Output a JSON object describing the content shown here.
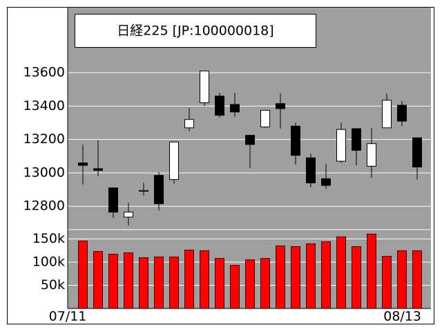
{
  "chart_data": [
    {
      "type": "candlestick",
      "title": "日経225 [JP:100000018]",
      "open": [
        13060,
        13025,
        12910,
        12735,
        12890,
        12985,
        12960,
        13270,
        13420,
        13460,
        13410,
        13225,
        13275,
        13415,
        13280,
        13090,
        12965,
        13070,
        13265,
        13040,
        13270,
        13405,
        13210
      ],
      "high": [
        13170,
        13195,
        12910,
        12820,
        12940,
        13005,
        13185,
        13390,
        13610,
        13480,
        13480,
        13225,
        13375,
        13475,
        13300,
        13115,
        13055,
        13300,
        13265,
        13270,
        13475,
        13430,
        13210
      ],
      "low": [
        12930,
        12980,
        12730,
        12685,
        12865,
        12775,
        12935,
        13250,
        13400,
        13330,
        13335,
        13030,
        13270,
        13265,
        13050,
        12915,
        12905,
        13060,
        13045,
        12970,
        13270,
        13280,
        12960
      ],
      "close": [
        13045,
        13015,
        12765,
        12765,
        12895,
        12815,
        13185,
        13320,
        13610,
        13345,
        13365,
        13170,
        13375,
        13385,
        13105,
        12940,
        12925,
        13260,
        13135,
        13175,
        13435,
        13310,
        13035
      ],
      "up_color": "#ffffff",
      "down_color": "#000000",
      "ylim": [
        12660,
        13990
      ],
      "yticks": [
        12800,
        13000,
        13200,
        13400,
        13600
      ],
      "grid": true
    },
    {
      "type": "bar",
      "categories": [
        "07/11",
        null,
        null,
        null,
        null,
        null,
        null,
        null,
        null,
        null,
        null,
        null,
        null,
        null,
        null,
        null,
        null,
        null,
        null,
        null,
        null,
        null,
        "08/13"
      ],
      "values": [
        145500,
        123000,
        117000,
        120000,
        109500,
        111000,
        111000,
        126000,
        124500,
        108000,
        93000,
        105000,
        108000,
        135000,
        133500,
        139500,
        144000,
        154500,
        133500,
        160500,
        112500,
        124500,
        124500
      ],
      "color": "#ff0000",
      "ylim": [
        0,
        170000
      ],
      "yticks": [
        {
          "value": 50000,
          "label": "50k"
        },
        {
          "value": 100000,
          "label": "100k"
        },
        {
          "value": 150000,
          "label": "150k"
        }
      ],
      "grid": true
    }
  ]
}
